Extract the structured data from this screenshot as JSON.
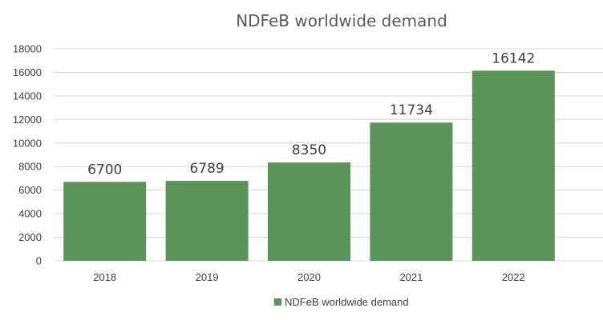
{
  "chart_data": {
    "type": "bar",
    "title": "NDFeB worldwide demand",
    "categories": [
      "2018",
      "2019",
      "2020",
      "2021",
      "2022"
    ],
    "series": [
      {
        "name": "NDFeB worldwide demand",
        "values": [
          6700,
          6789,
          8350,
          11734,
          16142
        ],
        "color": "#5a9458"
      }
    ],
    "data_labels": [
      "6700",
      "6789",
      "8350",
      "11734",
      "16142"
    ],
    "ylim": [
      0,
      18000
    ],
    "yticks": [
      "0",
      "2000",
      "4000",
      "6000",
      "8000",
      "10000",
      "12000",
      "14000",
      "16000",
      "18000"
    ],
    "xlabel": "",
    "ylabel": "",
    "grid": true,
    "legend_position": "bottom"
  }
}
